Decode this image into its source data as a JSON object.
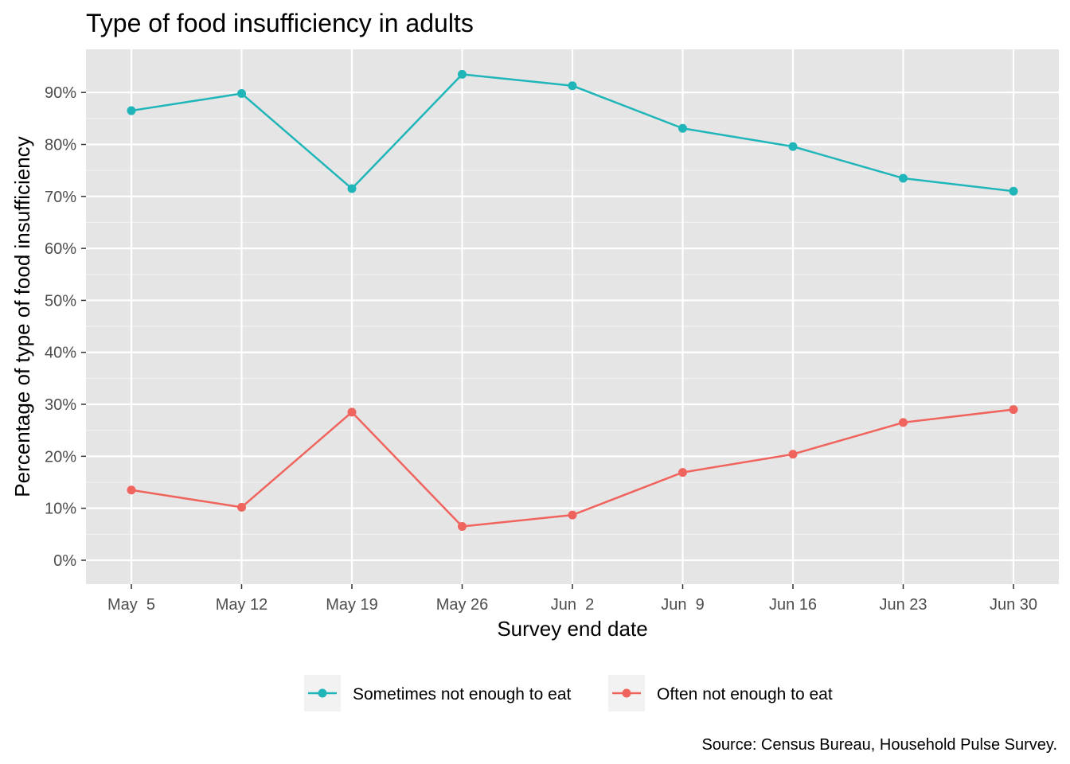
{
  "chart_data": {
    "type": "line",
    "title": "Type of food insufficiency in adults",
    "xlabel": "Survey end date",
    "ylabel": "Percentage of type of food insufficiency",
    "caption": "Source: Census Bureau, Household Pulse Survey.",
    "categories": [
      "May  5",
      "May 12",
      "May 19",
      "May 26",
      "Jun  2",
      "Jun  9",
      "Jun 16",
      "Jun 23",
      "Jun 30"
    ],
    "yticks": [
      0,
      10,
      20,
      30,
      40,
      50,
      60,
      70,
      80,
      90
    ],
    "ytick_labels": [
      "0%",
      "10%",
      "20%",
      "30%",
      "40%",
      "50%",
      "60%",
      "70%",
      "80%",
      "90%"
    ],
    "ylim": [
      -4.6,
      98.3
    ],
    "grid": true,
    "legend_position": "bottom",
    "series": [
      {
        "name": "Sometimes not enough to eat",
        "color": "#1FB5B9",
        "values": [
          86.5,
          89.8,
          71.5,
          93.5,
          91.3,
          83.1,
          79.6,
          73.5,
          71.0
        ]
      },
      {
        "name": "Often not enough to eat",
        "color": "#F0645E",
        "values": [
          13.5,
          10.2,
          28.5,
          6.5,
          8.7,
          16.9,
          20.4,
          26.5,
          29.0
        ]
      }
    ]
  }
}
